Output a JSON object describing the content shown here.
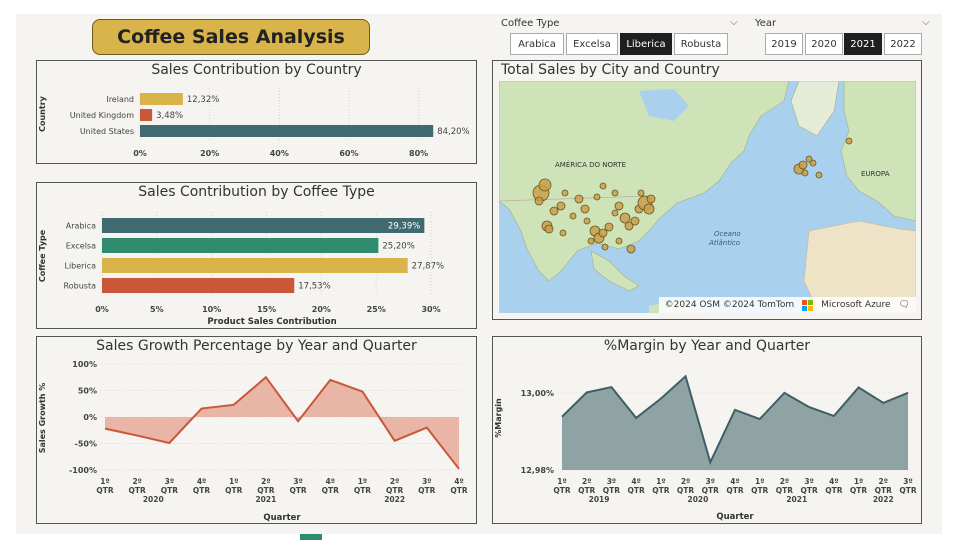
{
  "title": "Coffee Sales Analysis",
  "colors": {
    "teal": "#3f6b70",
    "green": "#2e8b6e",
    "gold": "#d9b44a",
    "rust": "#c9573a",
    "area_growth": "#e8b5a6",
    "area_margin": "#8fa3a5",
    "line_margin": "#3f5f66"
  },
  "filters": {
    "coffee_type": {
      "label": "Coffee Type",
      "options": [
        "Arabica",
        "Excelsa",
        "Liberica",
        "Robusta"
      ],
      "selected": "Liberica"
    },
    "year": {
      "label": "Year",
      "options": [
        "2019",
        "2020",
        "2021",
        "2022"
      ],
      "selected": "2021"
    }
  },
  "map": {
    "title": "Total Sales by City and Country",
    "labels": {
      "north_america": "AMÉRICA DO NORTE",
      "europe": "EUROPA",
      "ocean_line1": "Oceano",
      "ocean_line2": "Atlântico"
    },
    "attribution": "©2024 OSM ©2024 TomTom",
    "provider": "Microsoft Azure"
  },
  "chart_data": [
    {
      "id": "country",
      "type": "bar",
      "orientation": "horizontal",
      "title": "Sales Contribution by Country",
      "ylabel": "Country",
      "xlabel": "",
      "categories": [
        "Ireland",
        "United Kingdom",
        "United States"
      ],
      "values": [
        12.32,
        3.48,
        84.2
      ],
      "data_labels": [
        "12,32%",
        "3,48%",
        "84,20%"
      ],
      "colors": [
        "#d9b44a",
        "#c9573a",
        "#3f6b70"
      ],
      "xlim": [
        0,
        85
      ],
      "xticks": [
        0,
        20,
        40,
        60,
        80
      ],
      "xtick_labels": [
        "0%",
        "20%",
        "40%",
        "60%",
        "80%"
      ]
    },
    {
      "id": "coffee_type",
      "type": "bar",
      "orientation": "horizontal",
      "title": "Sales Contribution by Coffee Type",
      "ylabel": "Coffee Type",
      "xlabel": "Product Sales Contribution",
      "categories": [
        "Arabica",
        "Excelsa",
        "Liberica",
        "Robusta"
      ],
      "values": [
        29.39,
        25.2,
        27.87,
        17.53
      ],
      "data_labels": [
        "29,39%",
        "25,20%",
        "27,87%",
        "17,53%"
      ],
      "colors": [
        "#3f6b70",
        "#2e8b6e",
        "#d9b44a",
        "#c9573a"
      ],
      "xlim": [
        0,
        31
      ],
      "xticks": [
        0,
        5,
        10,
        15,
        20,
        25,
        30
      ],
      "xtick_labels": [
        "0%",
        "5%",
        "10%",
        "15%",
        "20%",
        "25%",
        "30%"
      ]
    },
    {
      "id": "growth",
      "type": "area",
      "title": "Sales Growth Percentage by Year and Quarter",
      "ylabel": "Sales Growth %",
      "xlabel": "Quarter",
      "quarters": [
        "1º QTR",
        "2º QTR",
        "3º QTR",
        "4º QTR",
        "1º QTR",
        "2º QTR",
        "3º QTR",
        "4º QTR",
        "1º QTR",
        "2º QTR",
        "3º QTR",
        "4º QTR"
      ],
      "years": [
        {
          "label": "2020",
          "span": [
            1,
            2
          ]
        },
        {
          "label": "2021",
          "span": [
            4,
            6
          ]
        },
        {
          "label": "2022",
          "span": [
            8,
            10
          ]
        }
      ],
      "values": [
        -22,
        -35,
        -49,
        16,
        23,
        75,
        -8,
        70,
        48,
        -45,
        -20,
        -98
      ],
      "ylim": [
        -100,
        100
      ],
      "yticks": [
        -100,
        -50,
        0,
        50,
        100
      ],
      "ytick_labels": [
        "-100%",
        "-50%",
        "0%",
        "50%",
        "100%"
      ]
    },
    {
      "id": "margin",
      "type": "area",
      "title": "%Margin by Year and Quarter",
      "ylabel": "%Margin",
      "xlabel": "Quarter",
      "quarters": [
        "1º QTR",
        "2º QTR",
        "3º QTR",
        "4º QTR",
        "1º QTR",
        "2º QTR",
        "3º QTR",
        "4º QTR",
        "1º QTR",
        "2º QTR",
        "3º QTR",
        "4º QTR",
        "1º QTR",
        "2º QTR",
        "3º QTR"
      ],
      "years": [
        {
          "label": "2019",
          "span": [
            1,
            2
          ]
        },
        {
          "label": "2020",
          "span": [
            5,
            6
          ]
        },
        {
          "label": "2021",
          "span": [
            9,
            10
          ]
        },
        {
          "label": "2022",
          "span": [
            13,
            13
          ]
        }
      ],
      "values": [
        12.9938,
        13.0001,
        13.0015,
        12.9935,
        12.9985,
        13.0043,
        12.982,
        12.9956,
        12.9932,
        13.0,
        12.9963,
        12.994,
        13.0014,
        12.9974,
        13.0
      ],
      "ylim": [
        12.98,
        13.008
      ],
      "yticks": [
        12.98,
        13.0
      ],
      "ytick_labels": [
        "12,98%",
        "13,00%"
      ]
    }
  ]
}
